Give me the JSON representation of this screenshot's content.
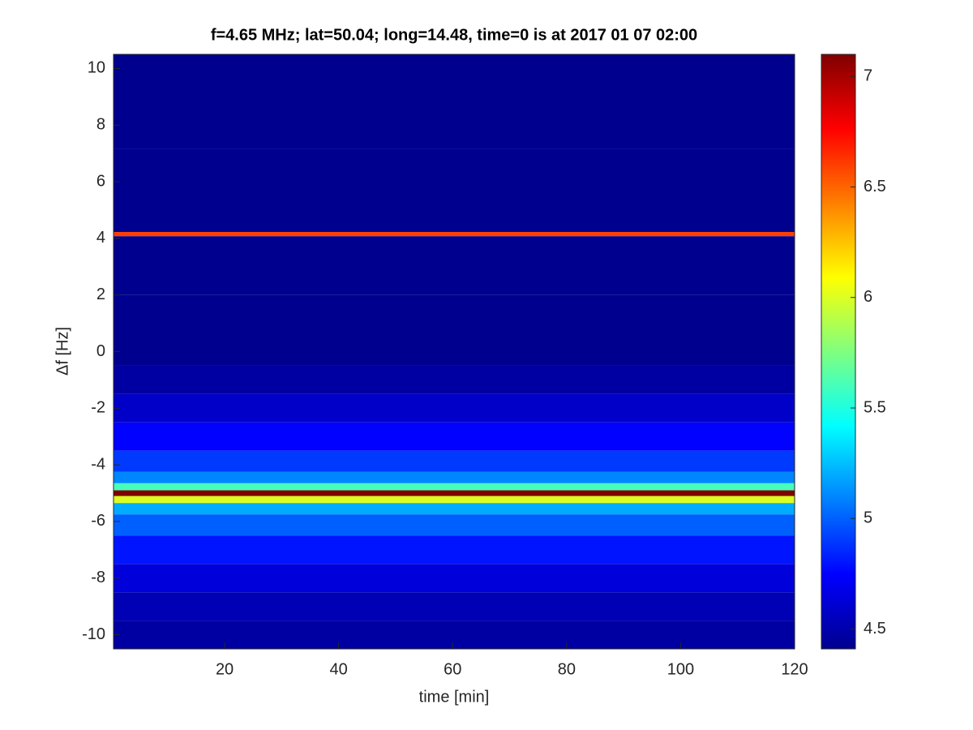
{
  "chart_data": {
    "type": "spectrogram",
    "title": "f=4.65 MHz;  lat=50.04; long=14.48, time=0 is at 2017 01 07 02:00",
    "x_label": "time [min]",
    "y_label": "Δf [Hz]",
    "xlim": [
      0.5,
      120
    ],
    "xticks": [
      20,
      40,
      60,
      80,
      100,
      120
    ],
    "ylim": [
      -10.5,
      10.5
    ],
    "yticks": [
      10,
      8,
      6,
      4,
      2,
      0,
      -2,
      -4,
      -6,
      -8,
      -10
    ],
    "y": [
      10,
      4.3,
      4.15,
      4.0,
      0,
      -1,
      -2,
      -3,
      -4,
      -4.5,
      -4.8,
      -5.0,
      -5.2,
      -5.5,
      -6,
      -7,
      -8,
      -9,
      -10
    ],
    "values": [
      4.45,
      4.45,
      6.6,
      4.45,
      4.45,
      4.5,
      4.6,
      4.75,
      4.9,
      5.1,
      5.6,
      7.1,
      6.0,
      5.2,
      5.0,
      4.8,
      4.65,
      4.55,
      4.5
    ],
    "colormap": "jet",
    "clim": [
      4.41,
      7.1
    ],
    "cticks": [
      4.5,
      5,
      5.5,
      6,
      6.5,
      7
    ]
  }
}
